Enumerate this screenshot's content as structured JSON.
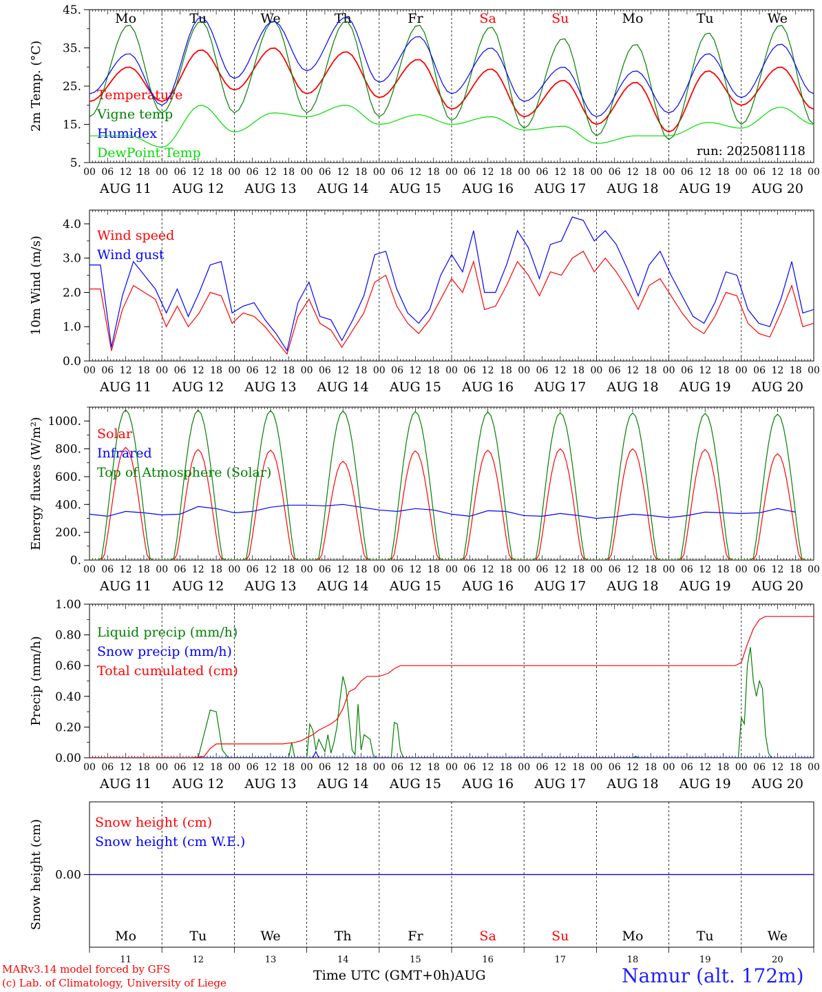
{
  "days": {
    "dates": [
      "11",
      "12",
      "13",
      "14",
      "15",
      "16",
      "17",
      "18",
      "19",
      "20"
    ],
    "date_labels": [
      "AUG 11",
      "AUG 12",
      "AUG 13",
      "AUG 14",
      "AUG 15",
      "AUG 16",
      "AUG 17",
      "AUG 18",
      "AUG 19",
      "AUG 20"
    ],
    "names": [
      "Mo",
      "Tu",
      "We",
      "Th",
      "Fr",
      "Sa",
      "Su",
      "Mo",
      "Tu",
      "We"
    ],
    "weekend_color": "#ff0000",
    "hour_ticks": [
      "00",
      "06",
      "12",
      "18"
    ]
  },
  "footer": {
    "credit_line1": "MARv3.14 model forced by GFS",
    "credit_line2": "(c) Lab. of Climatology, University of Liege",
    "xaxis_title": "Time UTC (GMT+0h)",
    "month": "AUG",
    "station": "Namur (alt. 172m)"
  },
  "chart_data": [
    {
      "type": "line",
      "ylabel": "2m Temp. (°C)",
      "yticks": [
        "5.",
        "15.",
        "25.",
        "35.",
        "45."
      ],
      "ylim": [
        5,
        45
      ],
      "run_label": "run: 2025081118",
      "grid": false,
      "legend_position": "left",
      "series": [
        {
          "name": "Temperature",
          "color": "#ff0000",
          "nights": [
            21,
            21,
            24,
            23,
            22,
            19,
            17,
            15,
            13,
            20,
            19
          ],
          "peaks": [
            30,
            34.5,
            35,
            34,
            32,
            29.5,
            26.5,
            26,
            29,
            30
          ]
        },
        {
          "name": "Vigne temp",
          "color": "#007f00",
          "nights": [
            17,
            18,
            18,
            18,
            17,
            16,
            14,
            12,
            11,
            15,
            15
          ],
          "peaks": [
            41,
            42,
            42,
            42,
            41,
            40.5,
            37.5,
            36,
            39,
            41
          ]
        },
        {
          "name": "Humidex",
          "color": "#0000ff",
          "nights": [
            23,
            20,
            27,
            29,
            26,
            23,
            21,
            17,
            18,
            22,
            23
          ],
          "peaks": [
            33.5,
            43,
            42,
            43,
            38,
            35,
            30,
            29,
            33.5,
            36
          ]
        },
        {
          "name": "DewPoint Temp",
          "color": "#00dd00",
          "nights": [
            12,
            9,
            13,
            17,
            15,
            15,
            13.5,
            10,
            12,
            14,
            15
          ],
          "peaks": [
            12,
            20,
            18,
            20,
            17.5,
            17,
            14.5,
            12,
            15.5,
            19.5
          ]
        }
      ]
    },
    {
      "type": "line",
      "ylabel": "10m Wind (m/s)",
      "yticks": [
        "0.0",
        "1.0",
        "2.0",
        "3.0",
        "4.0"
      ],
      "ylim": [
        0,
        4.4
      ],
      "grid": false,
      "legend_position": "left",
      "series": [
        {
          "name": "Wind speed",
          "color": "#ff0000",
          "hourly6": [
            2.1,
            2.1,
            0.3,
            1.5,
            2.2,
            2.0,
            1.8,
            1.0,
            1.6,
            1.0,
            1.4,
            2.0,
            1.9,
            1.1,
            1.4,
            1.3,
            1.0,
            0.6,
            0.2,
            1.3,
            1.8,
            1.1,
            0.9,
            0.4,
            0.9,
            1.4,
            2.3,
            2.5,
            1.6,
            1.1,
            0.8,
            1.2,
            1.8,
            2.4,
            2.0,
            2.9,
            1.5,
            1.6,
            2.2,
            2.9,
            2.5,
            1.9,
            2.6,
            2.5,
            3.0,
            3.2,
            2.6,
            3.0,
            2.6,
            2.1,
            1.5,
            2.2,
            2.4,
            1.9,
            1.4,
            1.0,
            0.8,
            1.3,
            2.0,
            1.9,
            1.1,
            0.8,
            0.7,
            1.4,
            2.2,
            1.0,
            1.1
          ]
        },
        {
          "name": "Wind gust",
          "color": "#0000ff",
          "hourly6": [
            2.8,
            2.8,
            0.4,
            1.9,
            2.9,
            2.5,
            2.1,
            1.4,
            2.1,
            1.3,
            2.0,
            2.8,
            2.9,
            1.4,
            1.6,
            1.7,
            1.2,
            0.8,
            0.3,
            1.7,
            2.3,
            1.3,
            1.2,
            0.6,
            1.2,
            1.9,
            3.1,
            3.2,
            2.1,
            1.4,
            1.1,
            1.5,
            2.5,
            3.1,
            2.6,
            3.8,
            2.0,
            2.0,
            2.8,
            3.8,
            3.3,
            2.4,
            3.4,
            3.5,
            4.2,
            4.1,
            3.5,
            3.8,
            3.4,
            2.7,
            1.9,
            2.8,
            3.2,
            2.5,
            1.9,
            1.3,
            1.1,
            1.7,
            2.6,
            2.5,
            1.5,
            1.1,
            1.0,
            1.8,
            2.9,
            1.4,
            1.5
          ]
        }
      ]
    },
    {
      "type": "line",
      "ylabel": "Energy fluxes (W/m²)",
      "yticks": [
        "0.",
        "200.",
        "400.",
        "600.",
        "800.",
        "1000."
      ],
      "ylim": [
        0,
        1100
      ],
      "grid": false,
      "legend_position": "left",
      "series": [
        {
          "name": "Solar",
          "color": "#ff0000",
          "peaks": [
            810,
            795,
            790,
            710,
            785,
            790,
            800,
            800,
            795,
            765
          ]
        },
        {
          "name": "Infrared",
          "color": "#0000ff",
          "hourly6": [
            330,
            315,
            350,
            340,
            325,
            330,
            385,
            370,
            340,
            350,
            380,
            395,
            395,
            390,
            400,
            380,
            360,
            350,
            370,
            360,
            330,
            315,
            355,
            350,
            320,
            315,
            335,
            320,
            300,
            310,
            330,
            320,
            305,
            320,
            345,
            340,
            335,
            340,
            370,
            345
          ]
        },
        {
          "name": "Top of Atmosphere (Solar)",
          "color": "#007f00",
          "peaks": [
            1080,
            1078,
            1075,
            1072,
            1068,
            1065,
            1060,
            1058,
            1055,
            1050
          ]
        }
      ]
    },
    {
      "type": "line",
      "ylabel": "Precip (mm/h)",
      "yticks": [
        "0.00",
        "0.20",
        "0.40",
        "0.60",
        "0.80",
        "1.00"
      ],
      "ylim": [
        0,
        1.0
      ],
      "grid": false,
      "legend_position": "left",
      "series": [
        {
          "name": "Liquid precip (mm/h)",
          "color": "#007f00",
          "points": [
            [
              0,
              0
            ],
            [
              36,
              0
            ],
            [
              40,
              0.31
            ],
            [
              42,
              0.3
            ],
            [
              44,
              0.05
            ],
            [
              46,
              0
            ],
            [
              66,
              0
            ],
            [
              67,
              0.1
            ],
            [
              68,
              0
            ],
            [
              72,
              0
            ],
            [
              73,
              0.22
            ],
            [
              74,
              0.18
            ],
            [
              75,
              0.05
            ],
            [
              76,
              0.12
            ],
            [
              77,
              0.08
            ],
            [
              78,
              0.04
            ],
            [
              79,
              0.15
            ],
            [
              80,
              0.03
            ],
            [
              81,
              0.1
            ],
            [
              82,
              0.2
            ],
            [
              83,
              0.38
            ],
            [
              84,
              0.53
            ],
            [
              85,
              0.45
            ],
            [
              86,
              0.25
            ],
            [
              87,
              0.05
            ],
            [
              88,
              0.02
            ],
            [
              89,
              0.35
            ],
            [
              90,
              0.05
            ],
            [
              91,
              0.15
            ],
            [
              93,
              0.12
            ],
            [
              94,
              0.02
            ],
            [
              95,
              0
            ],
            [
              100,
              0
            ],
            [
              101,
              0.23
            ],
            [
              102,
              0.22
            ],
            [
              103,
              0.05
            ],
            [
              104,
              0
            ],
            [
              180,
              0
            ],
            [
              181,
              0.01
            ],
            [
              182,
              0
            ],
            [
              215,
              0
            ],
            [
              216,
              0.26
            ],
            [
              217,
              0.22
            ],
            [
              218,
              0.6
            ],
            [
              219,
              0.72
            ],
            [
              220,
              0.5
            ],
            [
              221,
              0.4
            ],
            [
              222,
              0.5
            ],
            [
              223,
              0.45
            ],
            [
              224,
              0.15
            ],
            [
              225,
              0.03
            ],
            [
              226,
              0
            ]
          ]
        },
        {
          "name": "Snow precip (mm/h)",
          "color": "#0000ff",
          "points": [
            [
              0,
              0
            ],
            [
              74,
              0
            ],
            [
              75,
              0.04
            ],
            [
              76,
              0
            ],
            [
              240,
              0
            ]
          ]
        },
        {
          "name": "Total cumulated (cm)",
          "color": "#ff0000",
          "points": [
            [
              0,
              0
            ],
            [
              34,
              0
            ],
            [
              38,
              0.01
            ],
            [
              40,
              0.06
            ],
            [
              42,
              0.09
            ],
            [
              64,
              0.09
            ],
            [
              68,
              0.1
            ],
            [
              70,
              0.11
            ],
            [
              72,
              0.13
            ],
            [
              74,
              0.15
            ],
            [
              76,
              0.18
            ],
            [
              78,
              0.2
            ],
            [
              80,
              0.22
            ],
            [
              82,
              0.25
            ],
            [
              84,
              0.32
            ],
            [
              86,
              0.43
            ],
            [
              88,
              0.45
            ],
            [
              90,
              0.5
            ],
            [
              92,
              0.53
            ],
            [
              96,
              0.53
            ],
            [
              99,
              0.55
            ],
            [
              101,
              0.58
            ],
            [
              103,
              0.6
            ],
            [
              214,
              0.6
            ],
            [
              216,
              0.62
            ],
            [
              218,
              0.74
            ],
            [
              220,
              0.84
            ],
            [
              222,
              0.9
            ],
            [
              224,
              0.92
            ],
            [
              240,
              0.92
            ]
          ]
        }
      ]
    },
    {
      "type": "line",
      "ylabel": "Snow height (cm)",
      "yticks": [
        "0.00"
      ],
      "ylim": [
        -1,
        1
      ],
      "grid": false,
      "legend_position": "left",
      "series": [
        {
          "name": "Snow height (cm)",
          "color": "#ff0000",
          "points": [
            [
              0,
              0
            ],
            [
              240,
              0
            ]
          ]
        },
        {
          "name": "Snow height (cm W.E.)",
          "color": "#0000ff",
          "points": [
            [
              0,
              0
            ],
            [
              240,
              0
            ]
          ]
        }
      ]
    }
  ]
}
